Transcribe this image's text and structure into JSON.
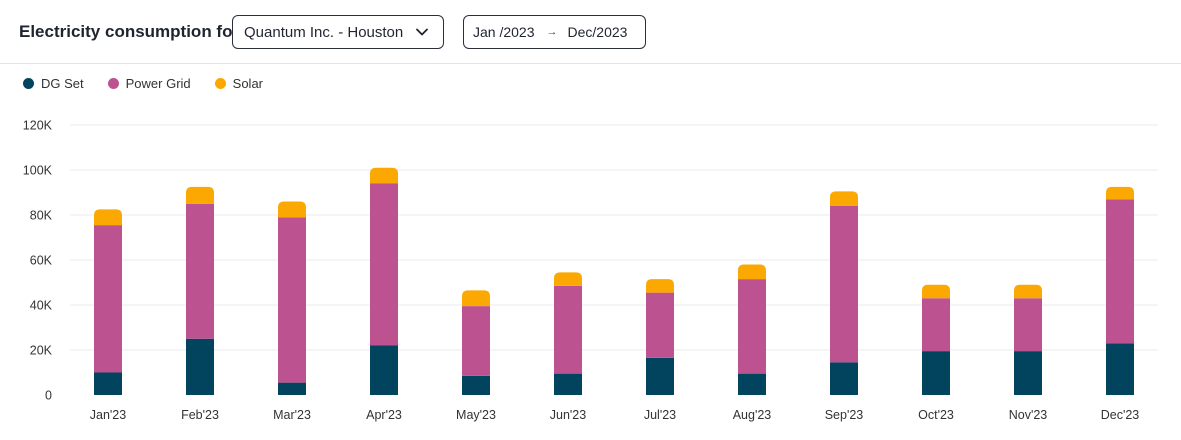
{
  "header": {
    "title": "Electricity consumption for",
    "company_select": "Quantum Inc. -  Houston",
    "date_start": "Jan /2023",
    "date_arrow": "→",
    "date_end": "Dec/2023"
  },
  "colors": {
    "dg_set": "#02435d",
    "power_grid": "#bd5291",
    "solar": "#fba802",
    "grid_line": "#ebebeb"
  },
  "chart_data": {
    "type": "bar",
    "stacked": true,
    "categories": [
      "Jan'23",
      "Feb'23",
      "Mar'23",
      "Apr'23",
      "May'23",
      "Jun'23",
      "Jul'23",
      "Aug'23",
      "Sep'23",
      "Oct'23",
      "Nov'23",
      "Dec'23"
    ],
    "series": [
      {
        "name": "DG Set",
        "color": "#02435d",
        "values": [
          10000,
          25000,
          5500,
          22000,
          8500,
          9500,
          16500,
          9500,
          14500,
          19500,
          19500,
          23000
        ]
      },
      {
        "name": "Power Grid",
        "color": "#bd5291",
        "values": [
          65500,
          60000,
          73500,
          72000,
          31000,
          39000,
          29000,
          42000,
          69500,
          23500,
          23500,
          64000
        ]
      },
      {
        "name": "Solar",
        "color": "#fba802",
        "values": [
          7000,
          7500,
          7000,
          7000,
          7000,
          6000,
          6000,
          6500,
          6500,
          6000,
          6000,
          5500
        ]
      }
    ],
    "yticks": [
      "0",
      "20K",
      "40K",
      "60K",
      "80K",
      "100K",
      "120K"
    ],
    "ytick_values": [
      0,
      20000,
      40000,
      60000,
      80000,
      100000,
      120000
    ],
    "ylim": [
      0,
      120000
    ],
    "grid": true,
    "legend_position": "top-left",
    "title": "",
    "xlabel": "",
    "ylabel": ""
  }
}
